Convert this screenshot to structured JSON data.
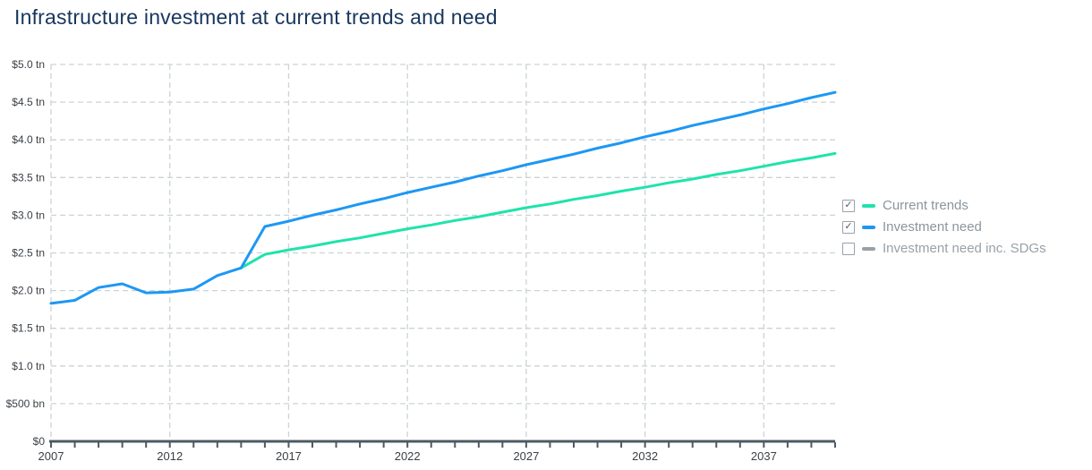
{
  "title": "Infrastructure investment at current trends and need",
  "colors": {
    "title": "#17365d",
    "grid": "#ccd3d7",
    "axis_line": "#4d5a64",
    "axis_text": "#3b4046",
    "legend_text": "#8b959d",
    "background": "#ffffff"
  },
  "legend": {
    "items": [
      {
        "label": "Current trends",
        "checked": true,
        "color": "#1fe3ac"
      },
      {
        "label": "Investment need",
        "checked": true,
        "color": "#1e97f3"
      },
      {
        "label": "Investment need inc. SDGs",
        "checked": false,
        "color": "#9aa0a6"
      }
    ]
  },
  "chart_data": {
    "type": "line",
    "title": "Infrastructure investment at current trends and need",
    "xlabel": "",
    "ylabel": "",
    "x_range": [
      2007,
      2040
    ],
    "ylim": [
      0,
      5.0
    ],
    "grid": true,
    "legend_position": "right",
    "y_ticks": [
      {
        "value": 0.0,
        "label": "$0"
      },
      {
        "value": 0.5,
        "label": "$500 bn"
      },
      {
        "value": 1.0,
        "label": "$1.0 tn"
      },
      {
        "value": 1.5,
        "label": "$1.5 tn"
      },
      {
        "value": 2.0,
        "label": "$2.0 tn"
      },
      {
        "value": 2.5,
        "label": "$2.5 tn"
      },
      {
        "value": 3.0,
        "label": "$3.0 tn"
      },
      {
        "value": 3.5,
        "label": "$3.5 tn"
      },
      {
        "value": 4.0,
        "label": "$4.0 tn"
      },
      {
        "value": 4.5,
        "label": "$4.5 tn"
      },
      {
        "value": 5.0,
        "label": "$5.0 tn"
      }
    ],
    "x_major_ticks": [
      2007,
      2012,
      2017,
      2022,
      2027,
      2032,
      2037
    ],
    "x_minor_tick_step": 1,
    "series": [
      {
        "name": "Current trends",
        "color": "#1fe3ac",
        "visible": true,
        "x_start": 2015,
        "values": [
          2.3,
          2.48,
          2.54,
          2.59,
          2.65,
          2.7,
          2.76,
          2.82,
          2.87,
          2.93,
          2.98,
          3.04,
          3.1,
          3.15,
          3.21,
          3.26,
          3.32,
          3.37,
          3.43,
          3.48,
          3.54,
          3.59,
          3.65,
          3.71,
          3.76,
          3.82
        ]
      },
      {
        "name": "Investment need",
        "color": "#1e97f3",
        "visible": true,
        "x_start": 2007,
        "values": [
          1.83,
          1.87,
          2.04,
          2.09,
          1.97,
          1.98,
          2.02,
          2.2,
          2.3,
          2.85,
          2.92,
          3.0,
          3.07,
          3.15,
          3.22,
          3.3,
          3.37,
          3.44,
          3.52,
          3.59,
          3.67,
          3.74,
          3.81,
          3.89,
          3.96,
          4.04,
          4.11,
          4.19,
          4.26,
          4.33,
          4.41,
          4.48,
          4.56,
          4.63
        ]
      },
      {
        "name": "Investment need inc. SDGs",
        "color": "#9aa0a6",
        "visible": false,
        "x_start": null,
        "values": []
      }
    ]
  }
}
